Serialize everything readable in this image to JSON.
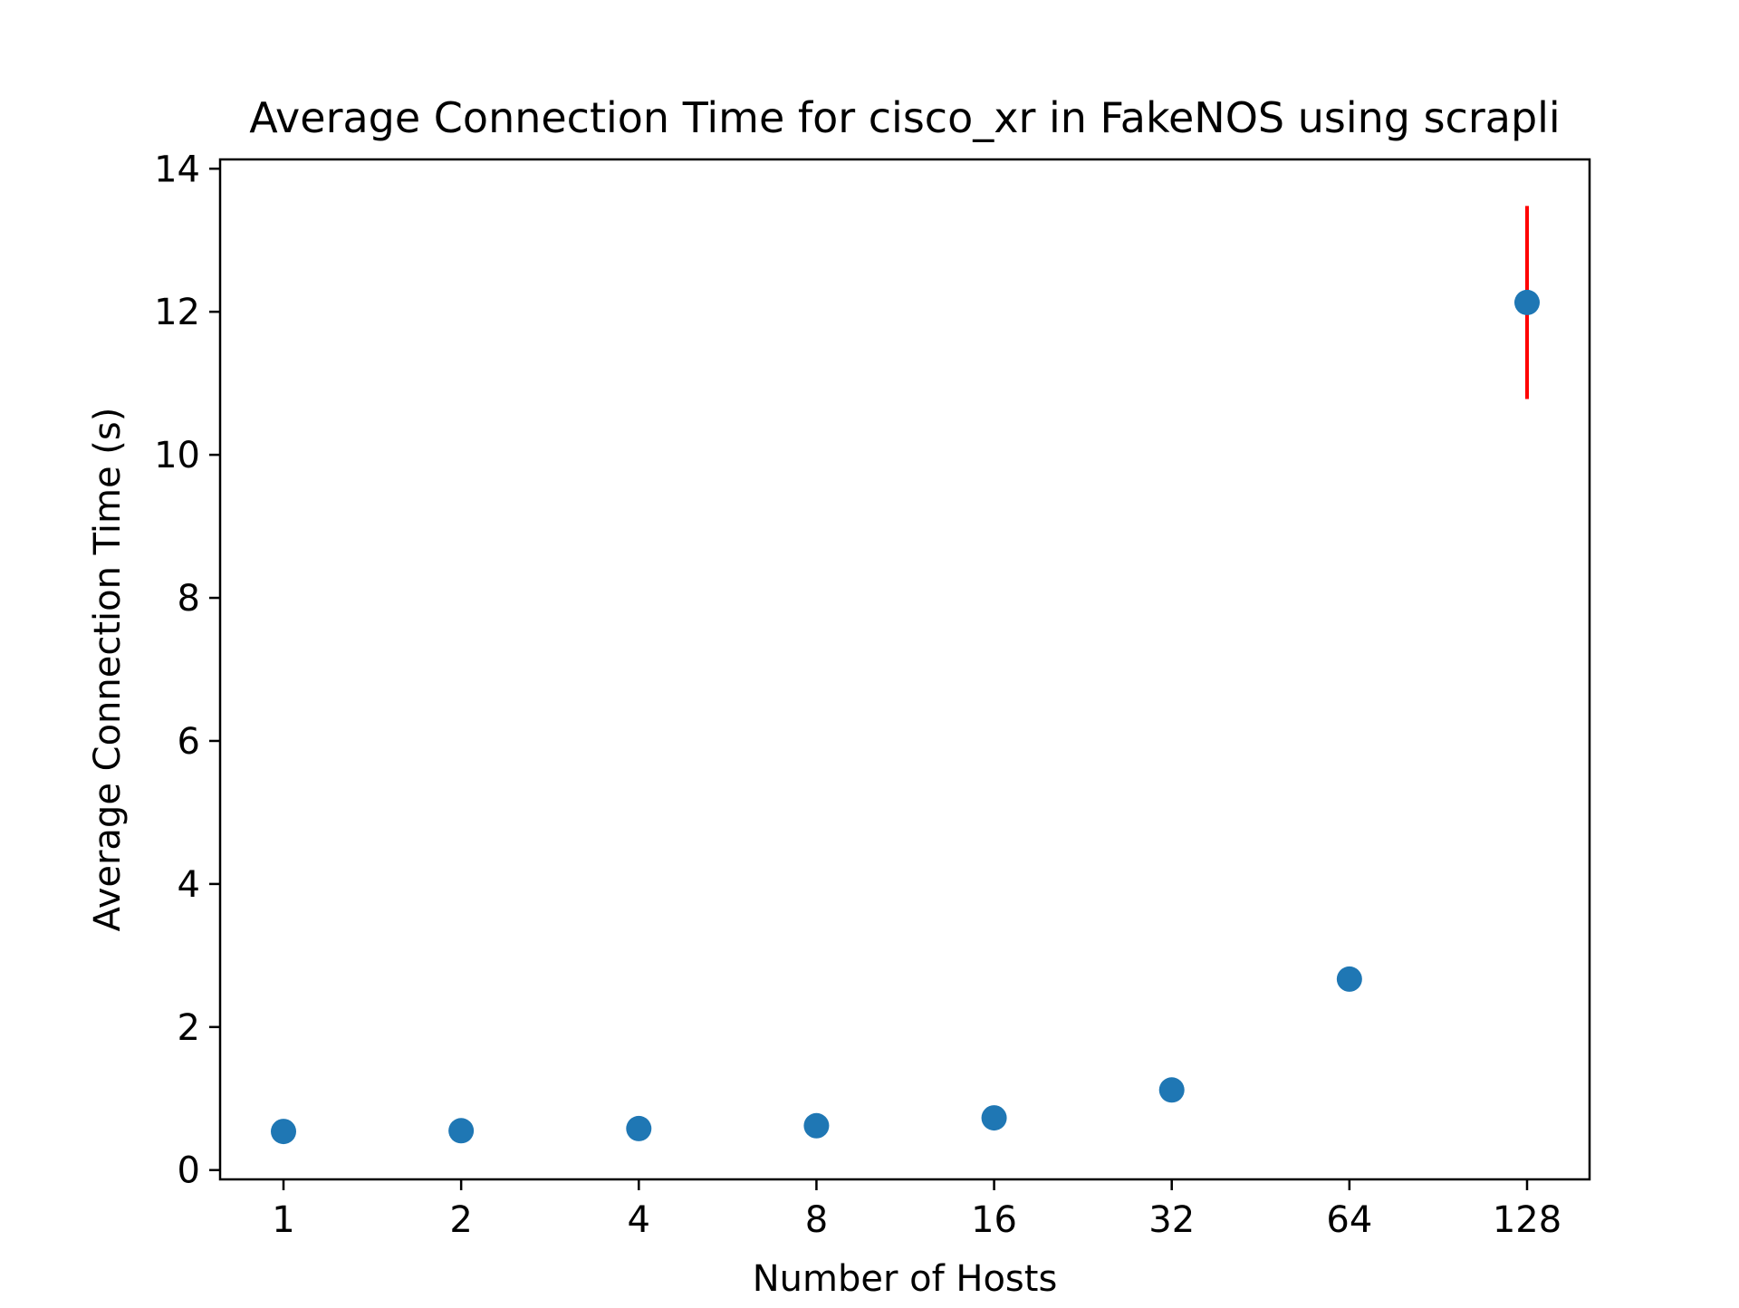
{
  "chart_data": {
    "type": "scatter",
    "title": "Average Connection Time for cisco_xr in FakeNOS using scrapli",
    "xlabel": "Number of Hosts",
    "ylabel": "Average Connection Time (s)",
    "x_scale": "log2",
    "x": [
      1,
      2,
      4,
      8,
      16,
      32,
      64,
      128
    ],
    "x_tick_labels": [
      "1",
      "2",
      "4",
      "8",
      "16",
      "32",
      "64",
      "128"
    ],
    "y": [
      0.54,
      0.55,
      0.58,
      0.62,
      0.73,
      1.12,
      2.67,
      12.13
    ],
    "y_err": [
      0,
      0,
      0,
      0,
      0,
      0,
      0,
      1.35
    ],
    "ylim": [
      -0.13,
      14.13
    ],
    "y_ticks": [
      0,
      2,
      4,
      6,
      8,
      10,
      12,
      14
    ],
    "y_tick_labels": [
      "0",
      "2",
      "4",
      "6",
      "8",
      "10",
      "12",
      "14"
    ],
    "grid": false,
    "legend": "none",
    "colors": {
      "marker": "#1f77b4",
      "error_bar": "#ff0000",
      "axes": "#000000"
    }
  }
}
